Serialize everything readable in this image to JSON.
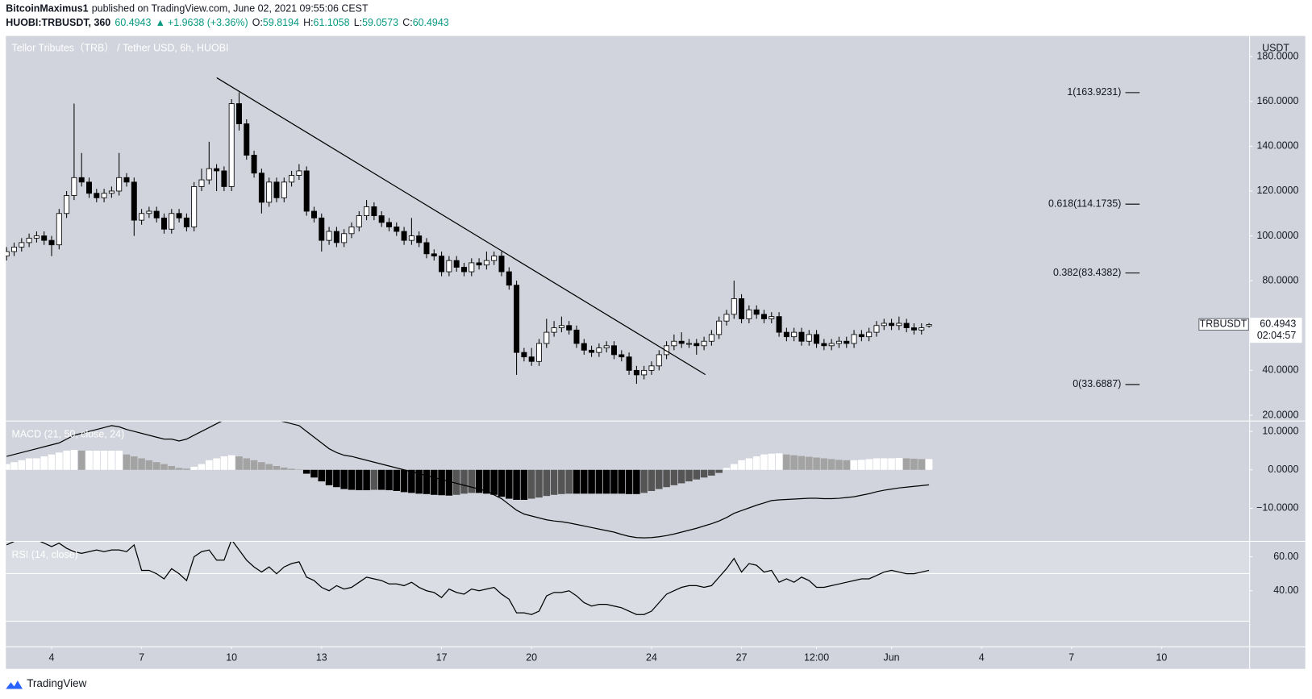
{
  "header": {
    "publisher": "BitcoinMaximus1",
    "published": "published on TradingView.com, June 02, 2021 09:55:06 CEST",
    "symbol": "HUOBI:TRBUSDT, 360",
    "price": "60.4943",
    "arrow": "▲",
    "change": "+1.9638 (+3.36%)",
    "ohlc": [
      {
        "label": "O:",
        "value": "59.8194"
      },
      {
        "label": "H:",
        "value": "61.1058"
      },
      {
        "label": "L:",
        "value": "59.0573"
      },
      {
        "label": "C:",
        "value": "60.4943"
      }
    ]
  },
  "chart_data": [
    {
      "type": "candlestick",
      "title": "Tellor Tributes（TRB） / Tether USD, 6h, HUOBI",
      "currency": "USDT",
      "xlim": [
        -0.1,
        165.7
      ],
      "xticks": [
        {
          "value": 6,
          "label": "4"
        },
        {
          "value": 18,
          "label": "7"
        },
        {
          "value": 30,
          "label": "10"
        },
        {
          "value": 42,
          "label": "13"
        },
        {
          "value": 58,
          "label": "17"
        },
        {
          "value": 70,
          "label": "20"
        },
        {
          "value": 86,
          "label": "24"
        },
        {
          "value": 98,
          "label": "27"
        },
        {
          "value": 108,
          "label": "12:00"
        },
        {
          "value": 118,
          "label": "Jun"
        },
        {
          "value": 130,
          "label": "4"
        },
        {
          "value": 142,
          "label": "7"
        },
        {
          "value": 154,
          "label": "10"
        }
      ],
      "ylim": [
        17.6,
        189.2
      ],
      "yticks": [
        {
          "value": 20,
          "label": "20.0000"
        },
        {
          "value": 40,
          "label": "40.0000"
        },
        {
          "value": 80,
          "label": "80.0000"
        },
        {
          "value": 100,
          "label": "100.0000"
        },
        {
          "value": 120,
          "label": "120.0000"
        },
        {
          "value": 140,
          "label": "140.0000"
        },
        {
          "value": 160,
          "label": "160.0000"
        },
        {
          "value": 180,
          "label": "180.0000"
        }
      ],
      "colors": {
        "up": "#ffffff",
        "down": "#000000",
        "wick": "#000000"
      },
      "candles": [
        [
          91,
          95,
          89,
          93
        ],
        [
          93,
          97,
          91,
          95
        ],
        [
          95,
          99,
          93,
          97
        ],
        [
          97,
          101,
          95,
          99
        ],
        [
          99,
          102,
          97,
          100
        ],
        [
          100,
          102,
          96,
          98
        ],
        [
          98,
          100,
          91,
          96
        ],
        [
          96,
          112,
          94,
          110
        ],
        [
          110,
          120,
          108,
          118
        ],
        [
          118,
          159,
          116,
          126
        ],
        [
          126,
          137,
          122,
          124
        ],
        [
          124,
          126,
          117,
          119
        ],
        [
          119,
          121,
          115,
          117
        ],
        [
          117,
          121,
          115,
          119
        ],
        [
          119,
          122,
          117,
          120
        ],
        [
          120,
          137,
          118,
          126
        ],
        [
          126,
          128,
          122,
          124
        ],
        [
          124,
          126,
          100,
          107
        ],
        [
          107,
          112,
          105,
          110
        ],
        [
          110,
          113,
          108,
          111
        ],
        [
          111,
          113,
          106,
          108
        ],
        [
          108,
          110,
          101,
          103
        ],
        [
          103,
          112,
          101,
          110
        ],
        [
          110,
          112,
          106,
          108
        ],
        [
          108,
          110,
          102,
          104
        ],
        [
          104,
          124,
          102,
          122
        ],
        [
          122,
          130,
          120,
          125
        ],
        [
          125,
          142,
          123,
          130
        ],
        [
          130,
          132,
          120,
          129
        ],
        [
          129,
          131,
          120,
          122
        ],
        [
          122,
          161,
          120,
          159
        ],
        [
          159,
          164,
          147,
          150
        ],
        [
          150,
          152,
          134,
          136
        ],
        [
          136,
          138,
          126,
          128
        ],
        [
          128,
          130,
          110,
          115
        ],
        [
          115,
          126,
          113,
          124
        ],
        [
          124,
          126,
          115,
          117
        ],
        [
          117,
          126,
          115,
          124
        ],
        [
          124,
          129,
          122,
          127
        ],
        [
          127,
          132,
          125,
          129
        ],
        [
          129,
          131,
          109,
          111
        ],
        [
          111,
          113,
          106,
          108
        ],
        [
          108,
          110,
          93,
          98
        ],
        [
          98,
          104,
          96,
          102
        ],
        [
          102,
          104,
          95,
          97
        ],
        [
          97,
          103,
          95,
          101
        ],
        [
          101,
          106,
          99,
          104
        ],
        [
          104,
          111,
          102,
          109
        ],
        [
          109,
          116,
          107,
          113
        ],
        [
          113,
          115,
          107,
          109
        ],
        [
          109,
          111,
          104,
          106
        ],
        [
          106,
          108,
          102,
          104
        ],
        [
          104,
          106,
          100,
          102
        ],
        [
          102,
          104,
          96,
          98
        ],
        [
          98,
          108,
          96,
          100
        ],
        [
          100,
          102,
          95,
          97
        ],
        [
          97,
          99,
          90,
          92
        ],
        [
          92,
          94,
          89,
          91
        ],
        [
          91,
          93,
          82,
          84
        ],
        [
          84,
          91,
          82,
          89
        ],
        [
          89,
          91,
          84,
          86
        ],
        [
          86,
          88,
          82,
          84
        ],
        [
          84,
          90,
          82,
          88
        ],
        [
          88,
          90,
          85,
          87
        ],
        [
          87,
          93,
          85,
          89
        ],
        [
          89,
          93,
          87,
          91
        ],
        [
          91,
          93,
          82,
          84
        ],
        [
          84,
          86,
          76,
          78
        ],
        [
          78,
          80,
          38,
          48
        ],
        [
          48,
          50,
          44,
          46
        ],
        [
          46,
          50,
          42,
          44
        ],
        [
          44,
          54,
          42,
          52
        ],
        [
          52,
          63,
          50,
          57
        ],
        [
          57,
          62,
          55,
          59
        ],
        [
          59,
          64,
          57,
          60
        ],
        [
          60,
          62,
          56,
          58
        ],
        [
          58,
          60,
          50,
          52
        ],
        [
          52,
          54,
          47,
          49
        ],
        [
          49,
          51,
          46,
          48
        ],
        [
          48,
          52,
          46,
          50
        ],
        [
          50,
          53,
          48,
          51
        ],
        [
          51,
          53,
          45,
          47
        ],
        [
          47,
          49,
          44,
          46
        ],
        [
          46,
          48,
          38,
          40
        ],
        [
          40,
          42,
          34,
          38
        ],
        [
          38,
          42,
          36,
          40
        ],
        [
          40,
          44,
          38,
          42
        ],
        [
          42,
          49,
          40,
          47
        ],
        [
          47,
          53,
          45,
          51
        ],
        [
          51,
          56,
          49,
          53
        ],
        [
          53,
          57,
          50,
          52
        ],
        [
          52,
          54,
          50,
          52
        ],
        [
          52,
          54,
          47,
          51
        ],
        [
          51,
          55,
          49,
          53
        ],
        [
          53,
          58,
          51,
          56
        ],
        [
          56,
          64,
          54,
          62
        ],
        [
          62,
          67,
          60,
          65
        ],
        [
          65,
          80,
          63,
          72
        ],
        [
          72,
          74,
          61,
          63
        ],
        [
          63,
          69,
          61,
          67
        ],
        [
          67,
          69,
          63,
          65
        ],
        [
          65,
          67,
          61,
          63
        ],
        [
          63,
          66,
          61,
          64
        ],
        [
          64,
          66,
          55,
          57
        ],
        [
          57,
          59,
          53,
          55
        ],
        [
          55,
          59,
          53,
          57
        ],
        [
          57,
          59,
          51,
          53
        ],
        [
          53,
          58,
          51,
          56
        ],
        [
          56,
          58,
          50,
          52
        ],
        [
          52,
          54,
          49,
          51
        ],
        [
          51,
          54,
          49,
          52
        ],
        [
          52,
          55,
          50,
          53
        ],
        [
          53,
          55,
          50,
          52
        ],
        [
          52,
          58,
          50,
          56
        ],
        [
          56,
          58,
          53,
          55
        ],
        [
          55,
          59,
          53,
          57
        ],
        [
          57,
          62,
          55,
          60
        ],
        [
          60,
          63,
          58,
          61
        ],
        [
          61,
          63,
          58,
          60
        ],
        [
          60,
          64,
          58,
          61
        ],
        [
          61,
          63,
          57,
          59
        ],
        [
          59,
          61,
          56,
          58
        ],
        [
          58,
          61,
          56,
          59
        ],
        [
          59.8194,
          61.1058,
          59.0573,
          60.4943
        ]
      ],
      "fib_levels": [
        {
          "value": 163.9231,
          "label": "1(163.9231)"
        },
        {
          "value": 114.1735,
          "label": "0.618(114.1735)"
        },
        {
          "value": 83.4382,
          "label": "0.382(83.4382)"
        },
        {
          "value": 33.6887,
          "label": "0(33.6887)"
        }
      ],
      "last_price": {
        "symbol": "TRBUSDT",
        "value": 60.4943,
        "countdown": "02:04:57"
      }
    },
    {
      "type": "macd",
      "title": "MACD (21, 50, close, 24)",
      "ylim": [
        -18.5,
        12.6
      ],
      "yticks": [
        {
          "value": 10,
          "label": "10.0000"
        },
        {
          "value": 0,
          "label": "0.0000"
        },
        {
          "value": -10,
          "label": "−10.0000"
        }
      ],
      "colors": {
        "rising_positive": "#ffffff",
        "falling_positive": "#a3a3a3",
        "falling_negative": "#000000",
        "rising_negative": "#555555",
        "line": "#000000"
      },
      "histogram": [
        1.5,
        2,
        2.5,
        3,
        3,
        3.5,
        4,
        4.5,
        5,
        5.2,
        5,
        5,
        5,
        5,
        5,
        5,
        4,
        3.5,
        3,
        2.5,
        2,
        1.5,
        1,
        0.5,
        0.3,
        0.8,
        1.5,
        2.5,
        3,
        3.5,
        3.8,
        3.5,
        3,
        2.5,
        2,
        1.5,
        1,
        0.6,
        0.3,
        0.1,
        -1,
        -2,
        -3,
        -4,
        -4.5,
        -5,
        -5.2,
        -5.3,
        -5.3,
        -5.2,
        -5.2,
        -5.3,
        -5.5,
        -5.8,
        -6,
        -6.2,
        -6.3,
        -6.5,
        -6.6,
        -6.7,
        -6.5,
        -6.2,
        -6,
        -6,
        -6.2,
        -6.5,
        -7,
        -7.5,
        -7.8,
        -7.8,
        -7.5,
        -7.2,
        -6.8,
        -6.5,
        -6.3,
        -6.2,
        -6.2,
        -6.2,
        -6.2,
        -6.2,
        -6.2,
        -6.2,
        -6.2,
        -6.3,
        -6.3,
        -6,
        -5.5,
        -5,
        -4.5,
        -4,
        -3.5,
        -3,
        -2.5,
        -2,
        -1.5,
        -0.8,
        0.5,
        1.5,
        2.5,
        3,
        3.5,
        4,
        4.2,
        4.3,
        4,
        3.8,
        3.6,
        3.4,
        3.2,
        3,
        2.8,
        2.6,
        2.5,
        2.5,
        2.6,
        2.8,
        3,
        3,
        3,
        3.1,
        3,
        2.9,
        2.8,
        2.8
      ],
      "line": [
        3.5,
        4,
        4.5,
        5,
        5.5,
        6,
        6.5,
        7,
        8,
        9,
        9.5,
        10,
        10.5,
        11,
        11.5,
        11.2,
        10.5,
        10,
        9.5,
        9,
        8.5,
        8,
        8,
        7.5,
        8,
        9,
        10,
        11,
        12,
        13,
        14,
        15,
        15,
        14.5,
        14,
        13.5,
        13,
        12.5,
        12,
        11.5,
        10,
        8.5,
        7,
        5.5,
        4.5,
        3.8,
        3.5,
        3,
        2.5,
        2,
        1.5,
        1,
        0.5,
        0,
        -0.5,
        -1,
        -1.5,
        -2,
        -2.5,
        -3,
        -3.5,
        -4,
        -4.5,
        -5,
        -5.5,
        -6.5,
        -7.5,
        -9,
        -10.5,
        -11.5,
        -12,
        -12.5,
        -13,
        -13.3,
        -13.5,
        -13.8,
        -14.2,
        -14.6,
        -15,
        -15.4,
        -15.8,
        -16.2,
        -16.8,
        -17.3,
        -17.6,
        -17.7,
        -17.6,
        -17.4,
        -17.1,
        -16.7,
        -16.2,
        -15.7,
        -15.2,
        -14.6,
        -14,
        -13.3,
        -12.4,
        -11.3,
        -10.6,
        -9.9,
        -9.2,
        -8.6,
        -8,
        -7.8,
        -7.7,
        -7.6,
        -7.5,
        -7.4,
        -7.4,
        -7.5,
        -7.5,
        -7.4,
        -7.2,
        -7,
        -6.6,
        -6.2,
        -5.7,
        -5.3,
        -5,
        -4.7,
        -4.5,
        -4.3,
        -4.1,
        -3.9
      ]
    },
    {
      "type": "rsi",
      "title": "RSI (14, close)",
      "ylim": [
        7.3,
        68.8
      ],
      "yticks": [
        {
          "value": 60,
          "label": "60.00"
        },
        {
          "value": 40,
          "label": "40.00"
        }
      ],
      "color": "#000000",
      "values": [
        67,
        69,
        72,
        72,
        70,
        68,
        66,
        68,
        65,
        63,
        62,
        63,
        64,
        63,
        64,
        64,
        63,
        67,
        52,
        52,
        50,
        47,
        53,
        50,
        46,
        60,
        63,
        64,
        58,
        58,
        70,
        64,
        58,
        54,
        51,
        54,
        50,
        54,
        56,
        57,
        48,
        46,
        42,
        40,
        43,
        41,
        42,
        45,
        48,
        47,
        46,
        44,
        44,
        43,
        45,
        42,
        40,
        39,
        36,
        41,
        39,
        38,
        41,
        40,
        41,
        42,
        38,
        35,
        27,
        27,
        26,
        28,
        37,
        39,
        39,
        40,
        37,
        33,
        31,
        32,
        32,
        31,
        30,
        28,
        26,
        26,
        28,
        33,
        38,
        40,
        42,
        43,
        43,
        42,
        43,
        48,
        53,
        59,
        51,
        56,
        55,
        51,
        52,
        45,
        47,
        45,
        48,
        46,
        42,
        42,
        43,
        44,
        45,
        46,
        47,
        47,
        49,
        51,
        52,
        51,
        50,
        50,
        51,
        52
      ]
    }
  ],
  "footer": {
    "brand": "TradingView"
  }
}
